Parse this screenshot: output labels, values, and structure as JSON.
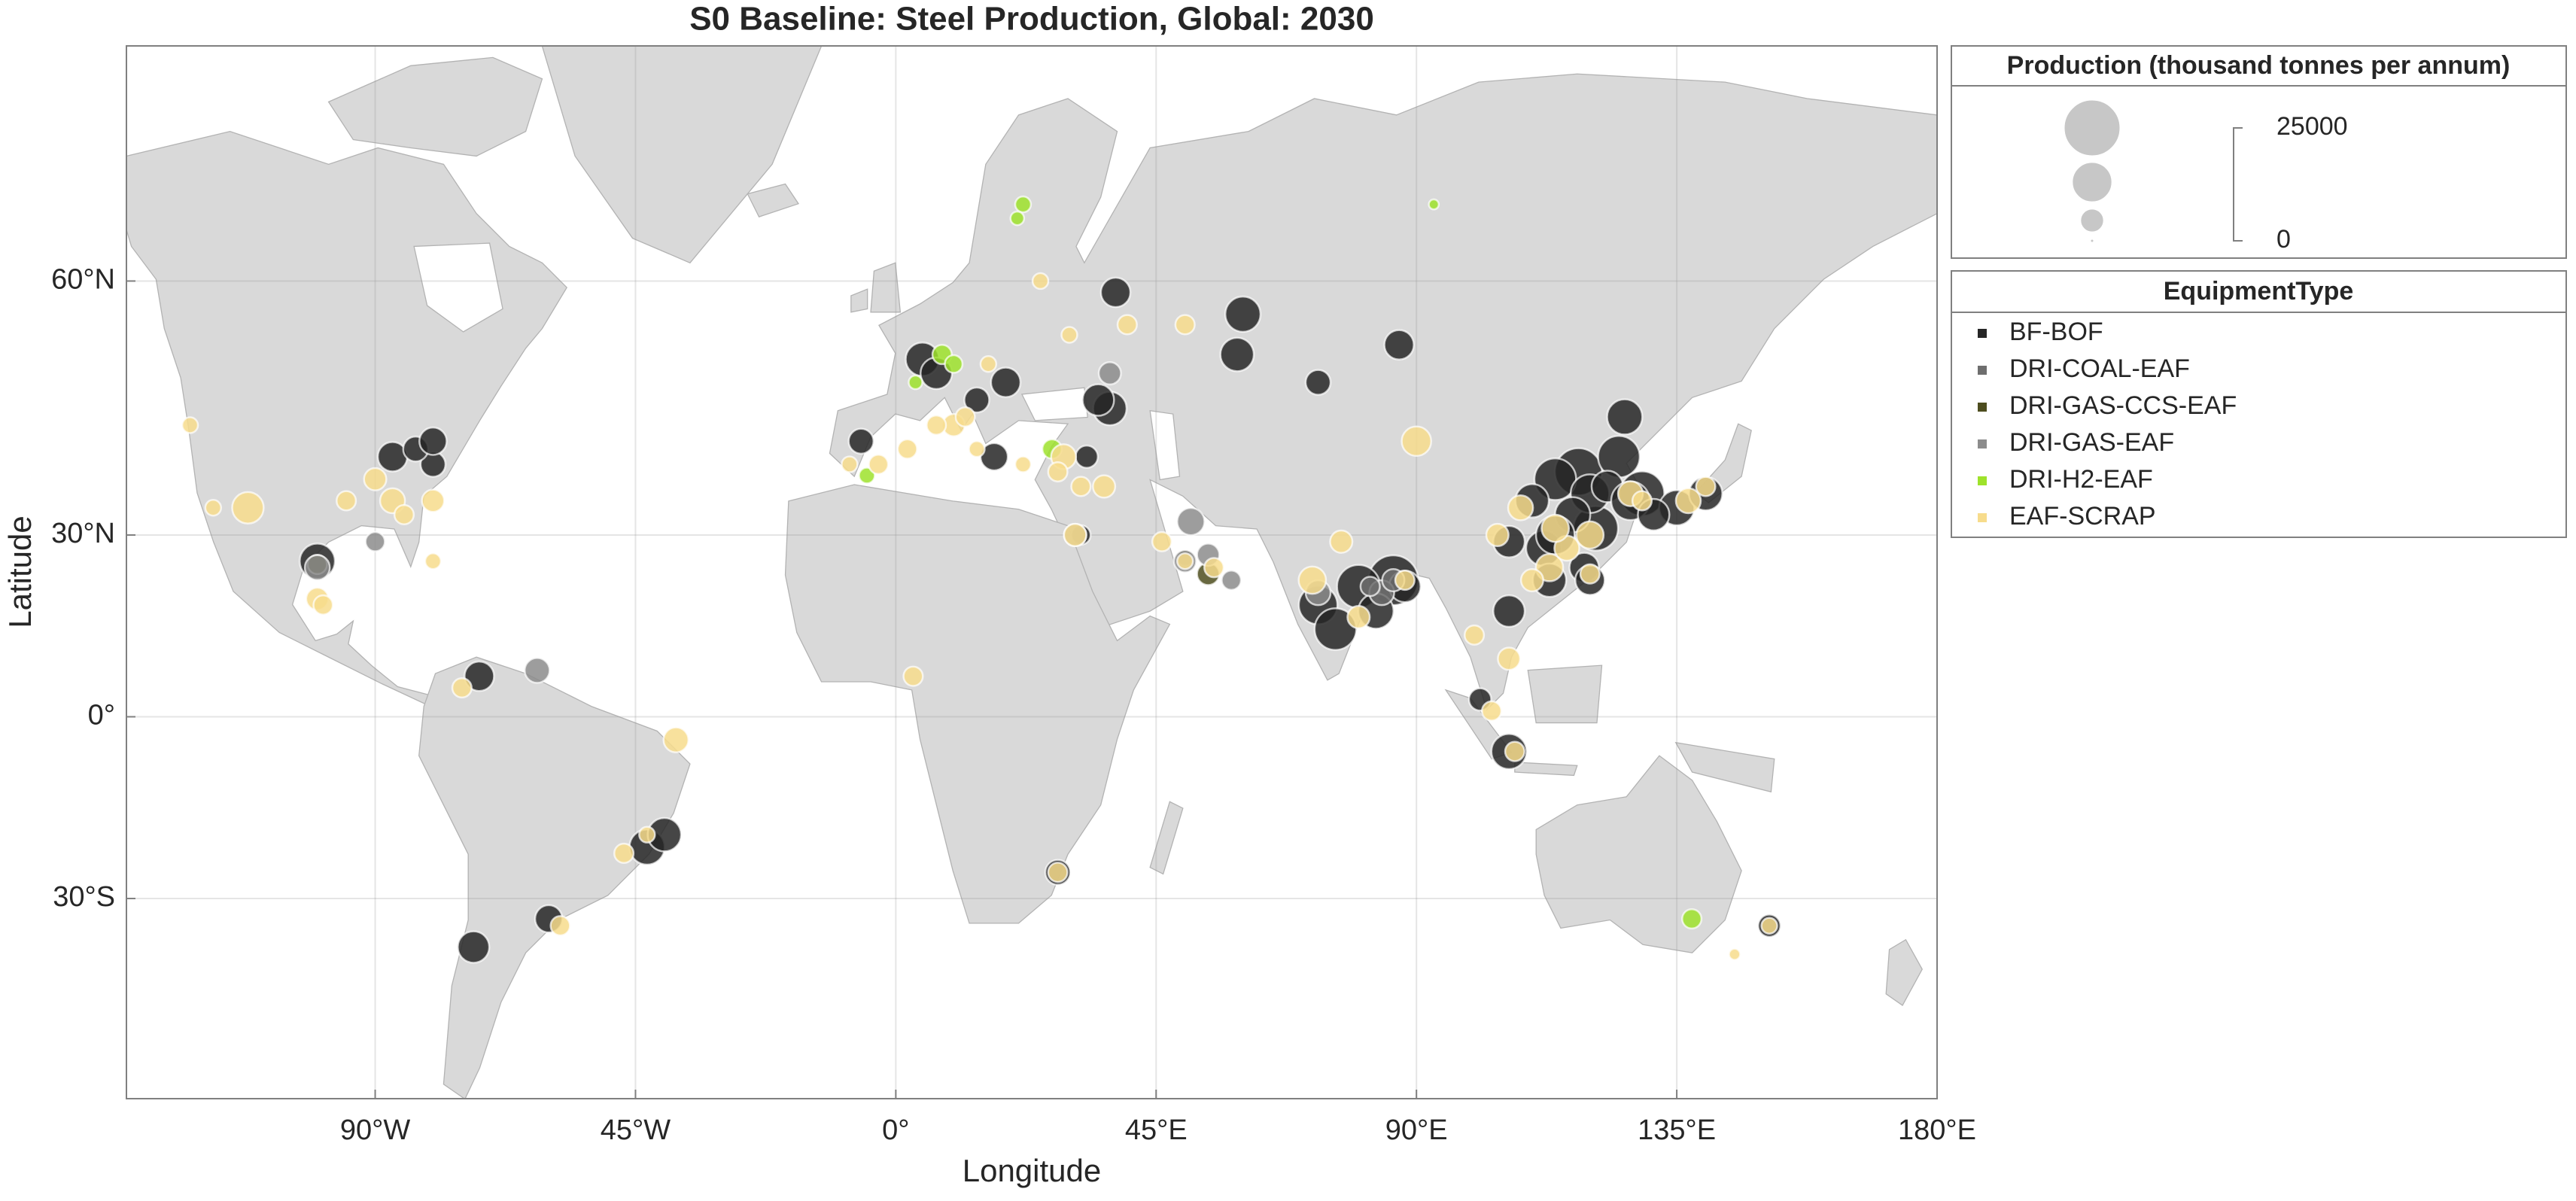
{
  "chart_data": {
    "type": "bubble-map",
    "title": "S0 Baseline: Steel Production, Global: 2030",
    "x_label": "Longitude",
    "y_label": "Latitude",
    "projection": "mercator",
    "xlim": [
      -133,
      180
    ],
    "ylim": [
      -55,
      75
    ],
    "xticks": [
      {
        "value": -90,
        "label": "90°W"
      },
      {
        "value": -45,
        "label": "45°W"
      },
      {
        "value": 0,
        "label": "0°"
      },
      {
        "value": 45,
        "label": "45°E"
      },
      {
        "value": 90,
        "label": "90°E"
      },
      {
        "value": 135,
        "label": "135°E"
      },
      {
        "value": 180,
        "label": "180°E"
      }
    ],
    "yticks": [
      {
        "value": -30,
        "label": "30°S"
      },
      {
        "value": 0,
        "label": "0°"
      },
      {
        "value": 30,
        "label": "30°N"
      },
      {
        "value": 60,
        "label": "60°N"
      }
    ],
    "grid": true,
    "legend_title": "EquipmentType",
    "size_legend": {
      "title": "Production (thousand tonnes per annum)",
      "values": [
        25000,
        12500,
        4200,
        0
      ]
    },
    "series": [
      {
        "name": "BF-BOF",
        "color": "#262626",
        "x": [
          86,
          80,
          73,
          76,
          83,
          88,
          118,
          114,
          121,
          120,
          112,
          106,
          125,
          117,
          110,
          123,
          114,
          119,
          126,
          113,
          129,
          127,
          135,
          131,
          140,
          106,
          106,
          120,
          4.6,
          7,
          -6,
          17,
          19,
          14,
          60,
          59,
          87,
          38,
          37,
          35,
          73,
          -87,
          -80,
          -83,
          -80,
          -100,
          -43,
          -40,
          -60,
          -73,
          -72,
          28,
          32,
          151,
          101,
          33
        ],
        "y": [
          23,
          22,
          19,
          15,
          18,
          22,
          39,
          38,
          31,
          36,
          28,
          29,
          41,
          33,
          35,
          37,
          30,
          25,
          46,
          23,
          36,
          35,
          34,
          33,
          36,
          18,
          -6,
          23,
          52.5,
          51,
          43,
          41,
          50,
          48,
          57,
          53,
          54,
          59,
          47,
          48,
          50,
          41,
          40,
          42,
          43,
          26,
          -22,
          -20,
          -33,
          -37,
          7,
          -26,
          30,
          -34,
          3,
          41
        ],
        "sizes": [
          20000,
          15000,
          12000,
          14000,
          10000,
          8000,
          18000,
          14000,
          16000,
          12000,
          10000,
          8000,
          14000,
          10000,
          9000,
          8000,
          12000,
          7000,
          10000,
          9000,
          16000,
          12000,
          10000,
          8000,
          9000,
          8000,
          10000,
          7000,
          9000,
          8000,
          5000,
          6000,
          7000,
          5000,
          10000,
          9000,
          7000,
          7000,
          9000,
          8000,
          5000,
          7000,
          5000,
          5000,
          6000,
          10000,
          10000,
          9000,
          6000,
          8000,
          7000,
          5000,
          3000,
          4000,
          4000,
          4000
        ]
      },
      {
        "name": "DRI-COAL-EAF",
        "color": "#6e6e6e",
        "x": [
          84,
          86,
          82
        ],
        "y": [
          21,
          23,
          22
        ],
        "sizes": [
          5000,
          4000,
          3000
        ]
      },
      {
        "name": "DRI-GAS-CCS-EAF",
        "color": "#4d4d1f",
        "x": [
          54,
          -100,
          50
        ],
        "y": [
          24,
          25.5,
          26.5
        ],
        "sizes": [
          4000,
          3000,
          2000
        ]
      },
      {
        "name": "DRI-GAS-EAF",
        "color": "#8c8c8c",
        "x": [
          51,
          54,
          50,
          -100,
          31,
          -62,
          37,
          73,
          -90,
          58
        ],
        "y": [
          32,
          27,
          26,
          25,
          30,
          8,
          51,
          21,
          29,
          23
        ],
        "sizes": [
          6000,
          4000,
          4000,
          5000,
          4000,
          5000,
          4000,
          5000,
          3000,
          3000
        ]
      },
      {
        "name": "DRI-H2-EAF",
        "color": "#9ee22b",
        "x": [
          22,
          21,
          8,
          10,
          27,
          137.6,
          93,
          -5,
          3.4
        ],
        "y": [
          66,
          65,
          53,
          52,
          42,
          -33,
          66,
          38.5,
          50
        ],
        "sizes": [
          2000,
          1500,
          3000,
          2500,
          3000,
          3000,
          800,
          2000,
          1500
        ]
      },
      {
        "name": "EAF-SCRAP",
        "color": "#f7dc8c",
        "x": [
          -112,
          -87,
          -90,
          -85,
          -95,
          -80,
          -100,
          -3,
          2,
          10,
          12,
          7,
          14,
          22,
          16,
          -8,
          29,
          36,
          28,
          32,
          46,
          50,
          55,
          72,
          77,
          88,
          80,
          113,
          116,
          108,
          114,
          120,
          104,
          120,
          110,
          127,
          129,
          137,
          140,
          50,
          90,
          106,
          100,
          103,
          107,
          -38,
          -47,
          -43,
          -58,
          -75,
          28,
          3,
          31,
          151,
          145,
          -122,
          -80,
          25,
          30,
          40,
          -99,
          -118
        ],
        "y": [
          34,
          35,
          38,
          33,
          35,
          35,
          20,
          40,
          42,
          45,
          46,
          45,
          42,
          40,
          52,
          40,
          41,
          37,
          39,
          37,
          29,
          26,
          25,
          23,
          29,
          23,
          17,
          25,
          28,
          34,
          31,
          30,
          30,
          24,
          23,
          36,
          35,
          35,
          37,
          56,
          43,
          10,
          14,
          1,
          -6,
          -4,
          -23,
          -20,
          -34,
          5,
          -26,
          7,
          30,
          -34,
          -38,
          45,
          26,
          60,
          55,
          56,
          19,
          34
        ],
        "sizes": [
          8000,
          5000,
          4000,
          3000,
          3000,
          4000,
          4000,
          3000,
          3000,
          4000,
          3000,
          3000,
          2000,
          2000,
          2000,
          2000,
          5000,
          4000,
          3000,
          3000,
          3000,
          2000,
          3000,
          6000,
          4000,
          3000,
          4000,
          6000,
          5000,
          5000,
          6000,
          6000,
          4000,
          3000,
          4000,
          5000,
          3000,
          5000,
          3000,
          3000,
          7000,
          4000,
          3000,
          3000,
          3000,
          5000,
          3000,
          2000,
          3000,
          3000,
          3000,
          3000,
          4000,
          2000,
          1000,
          2000,
          2000,
          2000,
          2000,
          3000,
          3000,
          2000
        ]
      }
    ]
  }
}
